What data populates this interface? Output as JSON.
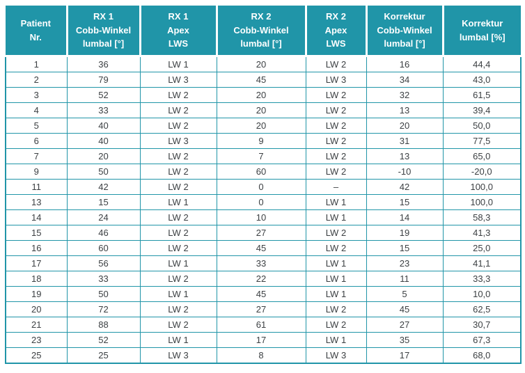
{
  "colors": {
    "header_bg": "#2095a8",
    "grid_line": "#2095a8",
    "header_text": "#ffffff",
    "body_text": "#3c4043",
    "row_bg": "#ffffff"
  },
  "table": {
    "columns": [
      {
        "id": "patient-nr",
        "label": "Patient\nNr."
      },
      {
        "id": "rx1-cobb",
        "label": "RX 1\nCobb-Winkel\nlumbal [°]"
      },
      {
        "id": "rx1-apex",
        "label": "RX 1\nApex\nLWS"
      },
      {
        "id": "rx2-cobb",
        "label": "RX 2\nCobb-Winkel\nlumbal [°]"
      },
      {
        "id": "rx2-apex",
        "label": "RX 2\nApex\nLWS"
      },
      {
        "id": "korrektur-cobb",
        "label": "Korrektur\nCobb-Winkel\nlumbal [°]"
      },
      {
        "id": "korrektur-pct",
        "label": "Korrektur\nlumbal [%]"
      }
    ],
    "rows": [
      [
        "1",
        "36",
        "LW 1",
        "20",
        "LW 2",
        "16",
        "44,4"
      ],
      [
        "2",
        "79",
        "LW 3",
        "45",
        "LW 3",
        "34",
        "43,0"
      ],
      [
        "3",
        "52",
        "LW 2",
        "20",
        "LW 2",
        "32",
        "61,5"
      ],
      [
        "4",
        "33",
        "LW 2",
        "20",
        "LW 2",
        "13",
        "39,4"
      ],
      [
        "5",
        "40",
        "LW 2",
        "20",
        "LW 2",
        "20",
        "50,0"
      ],
      [
        "6",
        "40",
        "LW 3",
        "9",
        "LW 2",
        "31",
        "77,5"
      ],
      [
        "7",
        "20",
        "LW 2",
        "7",
        "LW 2",
        "13",
        "65,0"
      ],
      [
        "9",
        "50",
        "LW 2",
        "60",
        "LW 2",
        "-10",
        "-20,0"
      ],
      [
        "11",
        "42",
        "LW 2",
        "0",
        "–",
        "42",
        "100,0"
      ],
      [
        "13",
        "15",
        "LW 1",
        "0",
        "LW 1",
        "15",
        "100,0"
      ],
      [
        "14",
        "24",
        "LW 2",
        "10",
        "LW 1",
        "14",
        "58,3"
      ],
      [
        "15",
        "46",
        "LW 2",
        "27",
        "LW 2",
        "19",
        "41,3"
      ],
      [
        "16",
        "60",
        "LW 2",
        "45",
        "LW 2",
        "15",
        "25,0"
      ],
      [
        "17",
        "56",
        "LW 1",
        "33",
        "LW 1",
        "23",
        "41,1"
      ],
      [
        "18",
        "33",
        "LW 2",
        "22",
        "LW 1",
        "11",
        "33,3"
      ],
      [
        "19",
        "50",
        "LW 1",
        "45",
        "LW 1",
        "5",
        "10,0"
      ],
      [
        "20",
        "72",
        "LW 2",
        "27",
        "LW 2",
        "45",
        "62,5"
      ],
      [
        "21",
        "88",
        "LW 2",
        "61",
        "LW 2",
        "27",
        "30,7"
      ],
      [
        "23",
        "52",
        "LW 1",
        "17",
        "LW 1",
        "35",
        "67,3"
      ],
      [
        "25",
        "25",
        "LW 3",
        "8",
        "LW 3",
        "17",
        "68,0"
      ]
    ]
  }
}
